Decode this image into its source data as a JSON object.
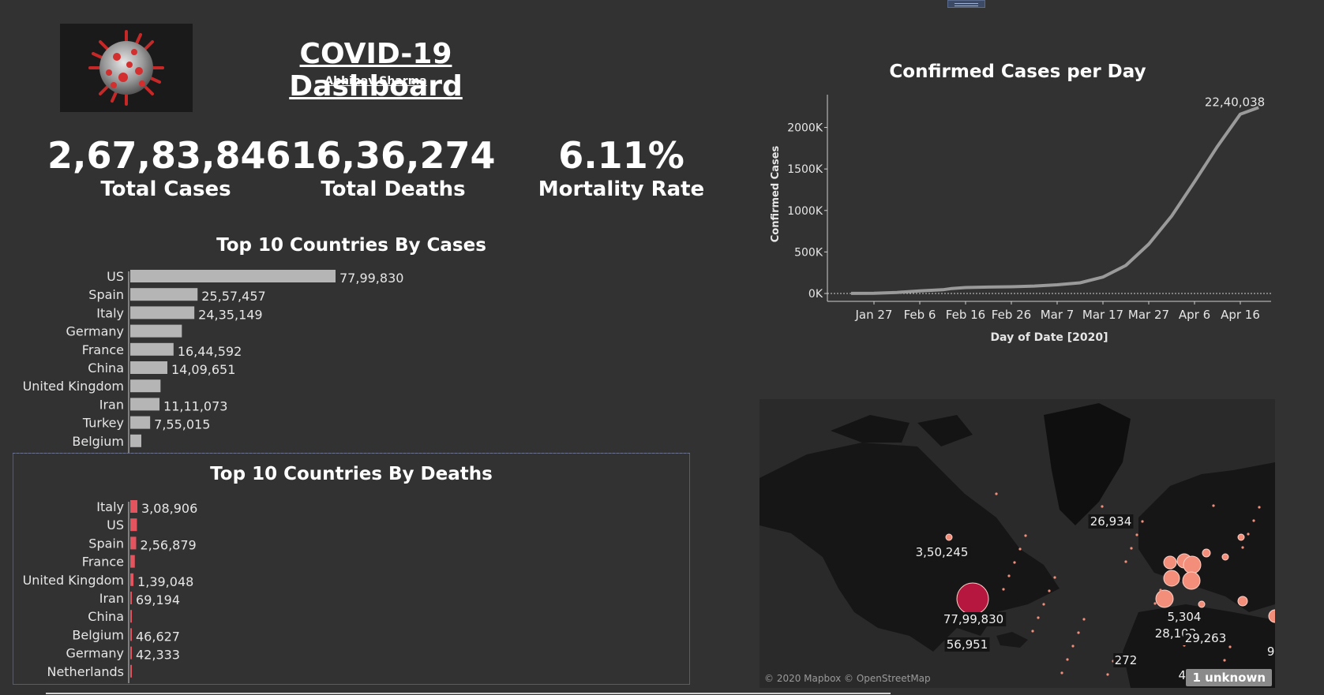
{
  "header": {
    "title": "COVID-19 Dashboard",
    "author": "Abhinav Sharma"
  },
  "kpis": {
    "total_cases": {
      "value": "2,67,83,846",
      "label": "Total Cases"
    },
    "total_deaths": {
      "value": "16,36,274",
      "label": "Total Deaths"
    },
    "mortality": {
      "value": "6.11%",
      "label": "Mortality Rate"
    }
  },
  "colors": {
    "background": "#323232",
    "bar_cases": "#b5b5b5",
    "bar_deaths": "#e3545f",
    "line": "#9a9a9a",
    "map_bubble": "#f28e7a",
    "map_bubble_us": "#b5173f"
  },
  "chart_data": [
    {
      "id": "cases_bar",
      "type": "bar",
      "orientation": "horizontal",
      "title": "Top 10 Countries By Cases",
      "categories": [
        "US",
        "Spain",
        "Italy",
        "Germany",
        "France",
        "China",
        "United Kingdom",
        "Iran",
        "Turkey",
        "Belgium"
      ],
      "values": [
        7799830,
        2557457,
        2435149,
        1960000,
        1644592,
        1409651,
        1150000,
        1111073,
        755015,
        420000
      ],
      "labels": [
        "77,99,830",
        "25,57,457",
        "24,35,149",
        "",
        "16,44,592",
        "14,09,651",
        "",
        "11,11,073",
        "7,55,015",
        ""
      ]
    },
    {
      "id": "deaths_bar",
      "type": "bar",
      "orientation": "horizontal",
      "title": "Top 10 Countries By Deaths",
      "categories": [
        "Italy",
        "US",
        "Spain",
        "France",
        "United Kingdom",
        "Iran",
        "China",
        "Belgium",
        "Germany",
        "Netherlands"
      ],
      "values": [
        308906,
        290000,
        256879,
        198000,
        139048,
        69194,
        62000,
        46627,
        42333,
        40000
      ],
      "labels": [
        "3,08,906",
        "",
        "2,56,879",
        "",
        "1,39,048",
        "69,194",
        "",
        "46,627",
        "42,333",
        ""
      ]
    },
    {
      "id": "cases_line",
      "type": "line",
      "title": "Confirmed Cases per Day",
      "xlabel": "Day of Date [2020]",
      "ylabel": "Confirmed Cases",
      "x_ticks": [
        "Jan 27",
        "Feb 6",
        "Feb 16",
        "Feb 26",
        "Mar 7",
        "Mar 17",
        "Mar 27",
        "Apr 6",
        "Apr 16"
      ],
      "y_ticks": [
        "0K",
        "500K",
        "1000K",
        "1500K",
        "2000K"
      ],
      "ylim": [
        0,
        2300000
      ],
      "x_range": [
        "2020-01-22",
        "2020-04-21"
      ],
      "end_label": "22,40,038",
      "series": [
        {
          "x": [
            "2020-01-22",
            "2020-01-27",
            "2020-02-01",
            "2020-02-06",
            "2020-02-11",
            "2020-02-13",
            "2020-02-16",
            "2020-02-21",
            "2020-02-26",
            "2020-03-02",
            "2020-03-07",
            "2020-03-12",
            "2020-03-17",
            "2020-03-22",
            "2020-03-27",
            "2020-04-01",
            "2020-04-06",
            "2020-04-11",
            "2020-04-16",
            "2020-04-20"
          ],
          "y": [
            555,
            2900,
            12000,
            31000,
            45000,
            60000,
            71000,
            77000,
            81000,
            89000,
            105000,
            128000,
            198000,
            337000,
            594000,
            932000,
            1346000,
            1772000,
            2160000,
            2240038
          ]
        }
      ]
    },
    {
      "id": "world_map",
      "type": "scatter",
      "title": "",
      "attribution": "© 2020 Mapbox © OpenStreetMap",
      "unknown_label": "1 unknown",
      "labels": [
        "3,50,245",
        "26,934",
        "77,99,830",
        "56,951",
        "5,304",
        "28,103",
        "29,263",
        "272",
        "48",
        "9,"
      ]
    }
  ]
}
